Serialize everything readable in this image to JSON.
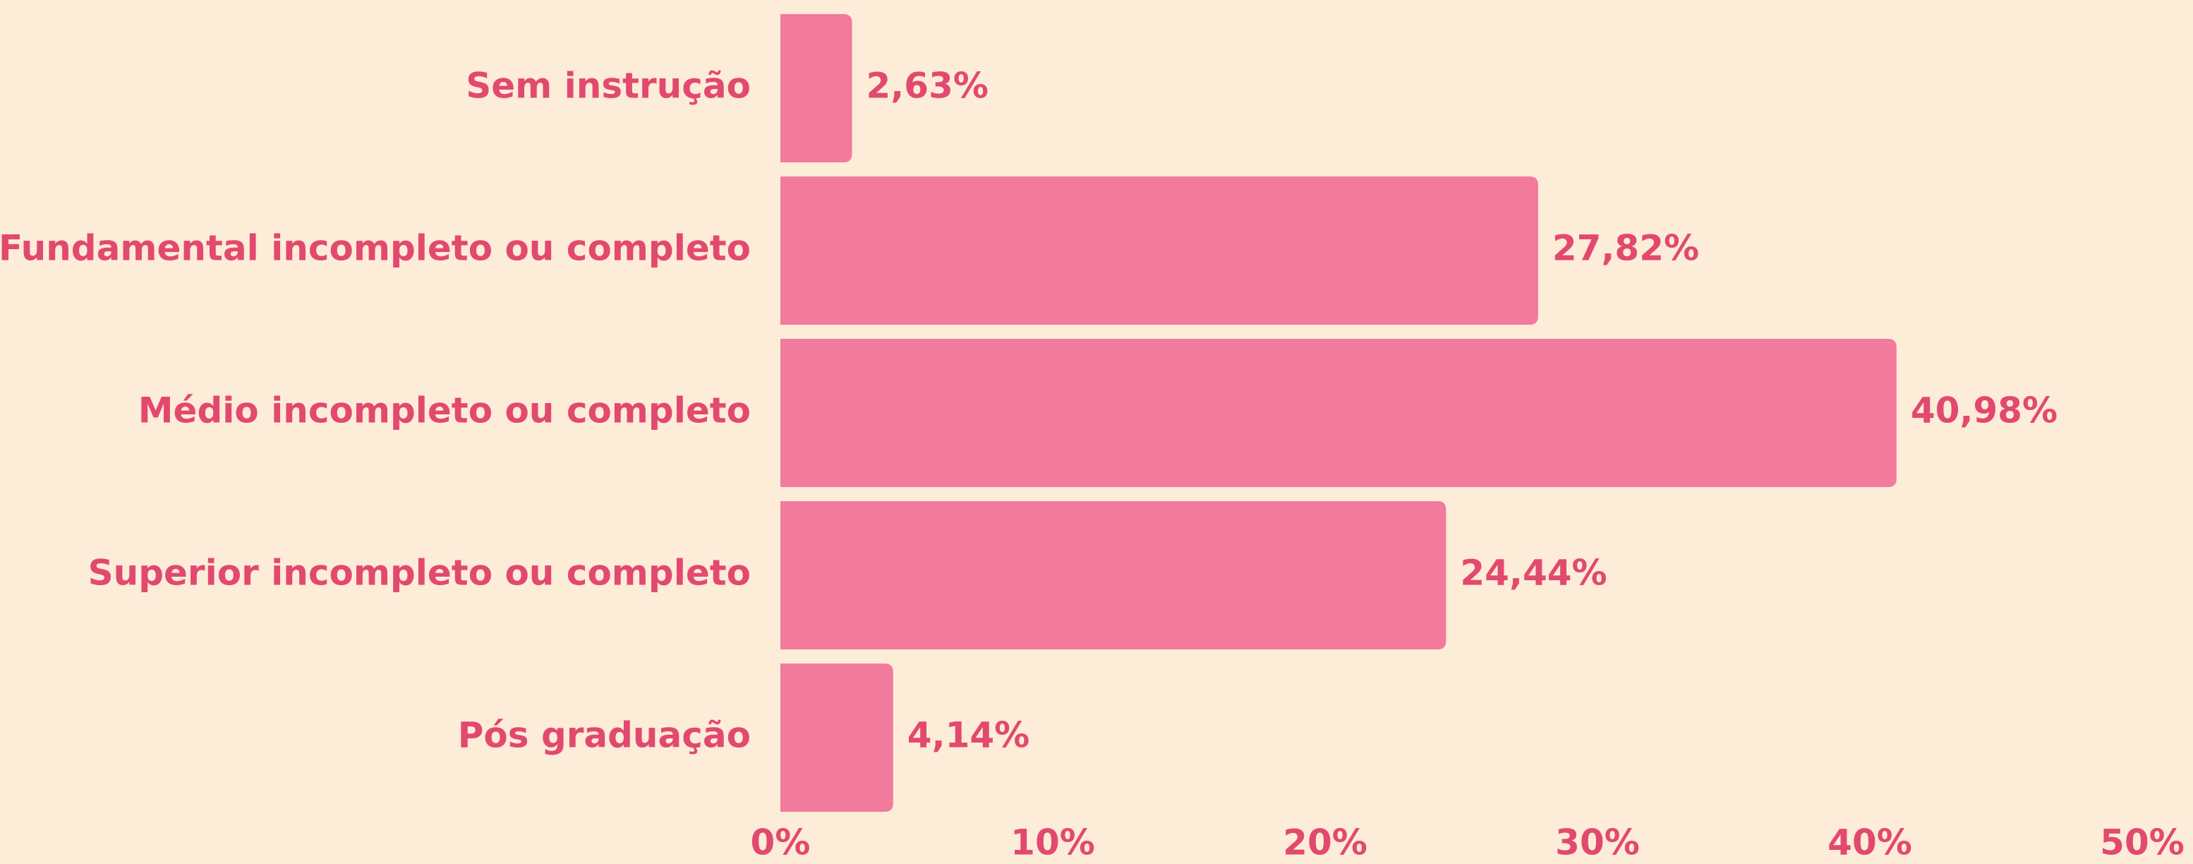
{
  "chart_data": {
    "type": "bar",
    "orientation": "horizontal",
    "categories": [
      "Sem instrução",
      "Fundamental incompleto ou completo",
      "Médio incompleto ou completo",
      "Superior incompleto ou completo",
      "Pós graduação"
    ],
    "values": [
      2.63,
      27.82,
      40.98,
      24.44,
      4.14
    ],
    "value_labels": [
      "2,63%",
      "27,82%",
      "40,98%",
      "24,44%",
      "4,14%"
    ],
    "color": "#f27a9c",
    "xlim": [
      0,
      50
    ],
    "xticks": [
      {
        "value": 0,
        "label": "0%"
      },
      {
        "value": 10,
        "label": "10%"
      },
      {
        "value": 20,
        "label": "20%"
      },
      {
        "value": 30,
        "label": "30%"
      },
      {
        "value": 40,
        "label": "40%"
      },
      {
        "value": 50,
        "label": "50%"
      }
    ],
    "grid": false
  }
}
